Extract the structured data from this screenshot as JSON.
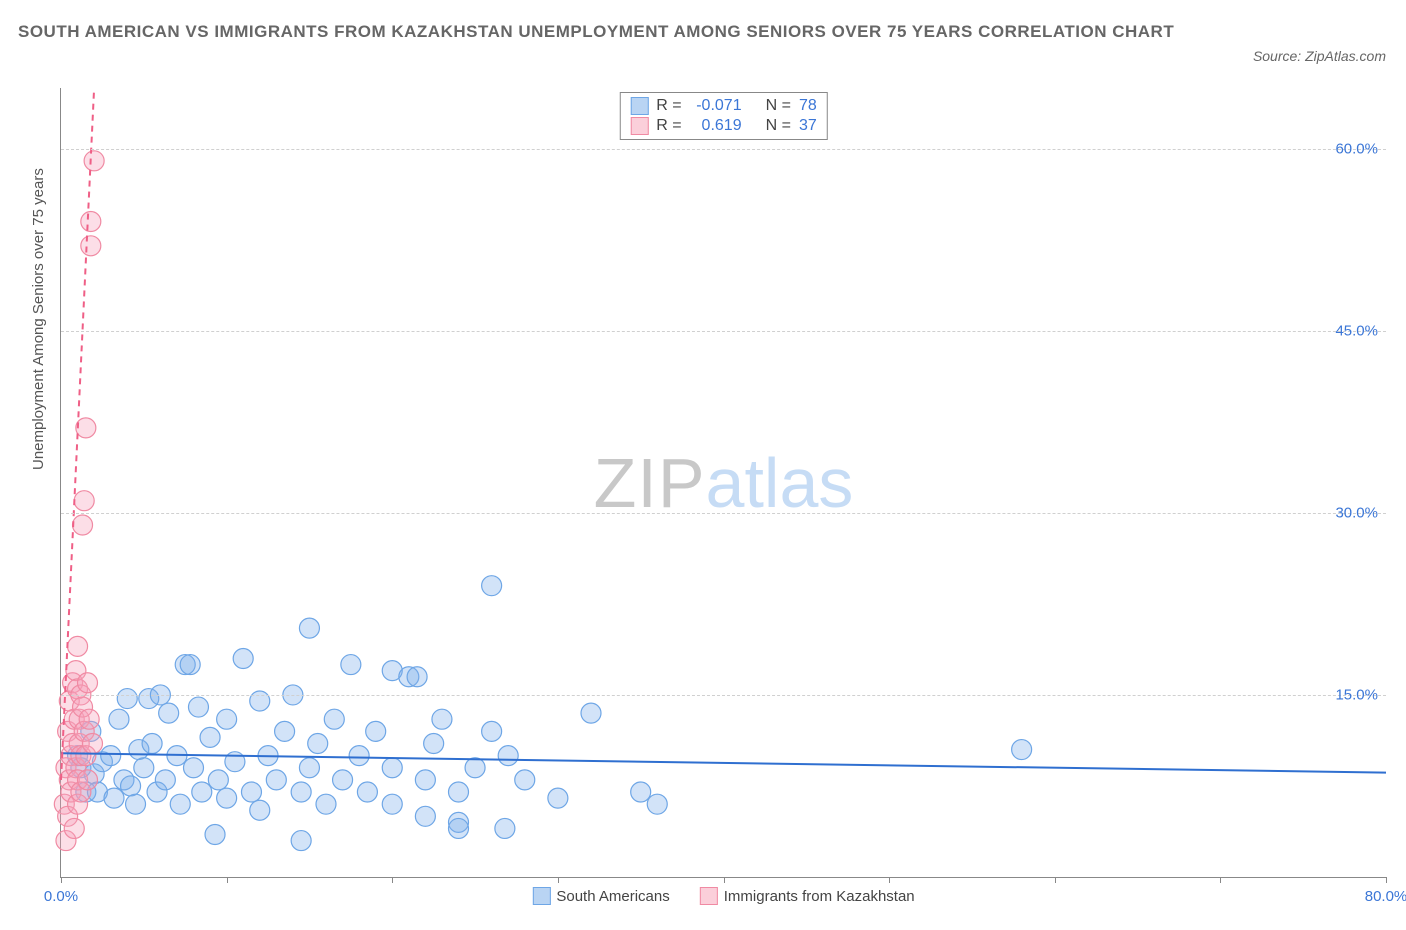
{
  "title": "SOUTH AMERICAN VS IMMIGRANTS FROM KAZAKHSTAN UNEMPLOYMENT AMONG SENIORS OVER 75 YEARS CORRELATION CHART",
  "source_label": "Source: ZipAtlas.com",
  "y_axis_label": "Unemployment Among Seniors over 75 years",
  "watermark_a": "ZIP",
  "watermark_b": "atlas",
  "chart": {
    "type": "scatter",
    "background_color": "#ffffff",
    "grid_color": "#d0d0d0",
    "axis_color": "#888888",
    "xlim": [
      0,
      80
    ],
    "ylim": [
      0,
      65
    ],
    "x_ticks": [
      0,
      10,
      20,
      30,
      40,
      50,
      60,
      70,
      80
    ],
    "x_tick_labels": {
      "0": "0.0%",
      "80": "80.0%"
    },
    "x_tick_label_color": "#3b76d6",
    "y_ticks": [
      15,
      30,
      45,
      60
    ],
    "y_tick_labels": {
      "15": "15.0%",
      "30": "30.0%",
      "45": "45.0%",
      "60": "60.0%"
    },
    "y_tick_label_color": "#3b76d6",
    "marker_radius": 10,
    "marker_stroke_width": 1.2,
    "trendline_width": 2,
    "legend_top": [
      {
        "swatch_fill": "#b9d4f3",
        "swatch_stroke": "#6ea6e6",
        "r_label": "R =",
        "r_value": "-0.071",
        "n_label": "N =",
        "n_value": "78"
      },
      {
        "swatch_fill": "#fbcfda",
        "swatch_stroke": "#f08aa3",
        "r_label": "R =",
        "r_value": "0.619",
        "n_label": "N =",
        "n_value": "37"
      }
    ],
    "legend_bottom": [
      {
        "swatch_fill": "#b9d4f3",
        "swatch_stroke": "#6ea6e6",
        "label": "South Americans"
      },
      {
        "swatch_fill": "#fbcfda",
        "swatch_stroke": "#f08aa3",
        "label": "Immigrants from Kazakhstan"
      }
    ],
    "series": [
      {
        "name": "South Americans",
        "fill": "rgba(125,175,235,0.35)",
        "stroke": "#6ea6e6",
        "trend_color": "#2f6fd0",
        "trend_dash": "none",
        "trend_p1": [
          0,
          10.2
        ],
        "trend_p2": [
          80,
          8.6
        ],
        "points": [
          [
            1.0,
            10.0
          ],
          [
            1.2,
            9.0
          ],
          [
            1.5,
            7.0
          ],
          [
            1.8,
            12.0
          ],
          [
            2.0,
            8.5
          ],
          [
            2.2,
            7.0
          ],
          [
            2.5,
            9.5
          ],
          [
            3.0,
            10.0
          ],
          [
            3.2,
            6.5
          ],
          [
            3.5,
            13.0
          ],
          [
            3.8,
            8.0
          ],
          [
            4.0,
            14.7
          ],
          [
            4.2,
            7.5
          ],
          [
            4.5,
            6.0
          ],
          [
            4.7,
            10.5
          ],
          [
            5.0,
            9.0
          ],
          [
            5.3,
            14.7
          ],
          [
            5.5,
            11.0
          ],
          [
            5.8,
            7.0
          ],
          [
            6.0,
            15.0
          ],
          [
            6.3,
            8.0
          ],
          [
            6.5,
            13.5
          ],
          [
            7.0,
            10.0
          ],
          [
            7.2,
            6.0
          ],
          [
            7.5,
            17.5
          ],
          [
            7.8,
            17.5
          ],
          [
            8.0,
            9.0
          ],
          [
            8.3,
            14.0
          ],
          [
            8.5,
            7.0
          ],
          [
            9.0,
            11.5
          ],
          [
            9.3,
            3.5
          ],
          [
            9.5,
            8.0
          ],
          [
            10.0,
            13.0
          ],
          [
            10.0,
            6.5
          ],
          [
            10.5,
            9.5
          ],
          [
            11.0,
            18.0
          ],
          [
            11.5,
            7.0
          ],
          [
            12.0,
            14.5
          ],
          [
            12.0,
            5.5
          ],
          [
            12.5,
            10.0
          ],
          [
            13.0,
            8.0
          ],
          [
            13.5,
            12.0
          ],
          [
            14.0,
            15.0
          ],
          [
            14.5,
            7.0
          ],
          [
            14.5,
            3.0
          ],
          [
            15.0,
            9.0
          ],
          [
            15.0,
            20.5
          ],
          [
            15.5,
            11.0
          ],
          [
            16.0,
            6.0
          ],
          [
            16.5,
            13.0
          ],
          [
            17.0,
            8.0
          ],
          [
            17.5,
            17.5
          ],
          [
            18.0,
            10.0
          ],
          [
            18.5,
            7.0
          ],
          [
            19.0,
            12.0
          ],
          [
            20.0,
            6.0
          ],
          [
            20.0,
            9.0
          ],
          [
            20.0,
            17.0
          ],
          [
            21.0,
            16.5
          ],
          [
            21.5,
            16.5
          ],
          [
            22.0,
            8.0
          ],
          [
            22.0,
            5.0
          ],
          [
            22.5,
            11.0
          ],
          [
            23.0,
            13.0
          ],
          [
            24.0,
            7.0
          ],
          [
            24.0,
            4.5
          ],
          [
            24.0,
            4.0
          ],
          [
            25.0,
            9.0
          ],
          [
            26.0,
            24.0
          ],
          [
            26.8,
            4.0
          ],
          [
            26.0,
            12.0
          ],
          [
            27.0,
            10.0
          ],
          [
            28.0,
            8.0
          ],
          [
            30.0,
            6.5
          ],
          [
            32.0,
            13.5
          ],
          [
            35.0,
            7.0
          ],
          [
            58.0,
            10.5
          ],
          [
            36.0,
            6.0
          ]
        ]
      },
      {
        "name": "Immigrants from Kazakhstan",
        "fill": "rgba(246,160,185,0.35)",
        "stroke": "#f08aa3",
        "trend_color": "#ef5f86",
        "trend_dash": "6,5",
        "trend_p1": [
          0,
          8.0
        ],
        "trend_p2": [
          2.0,
          65.0
        ],
        "points": [
          [
            0.2,
            6.0
          ],
          [
            0.3,
            3.0
          ],
          [
            0.3,
            9.0
          ],
          [
            0.4,
            12.0
          ],
          [
            0.4,
            5.0
          ],
          [
            0.5,
            14.5
          ],
          [
            0.5,
            8.0
          ],
          [
            0.6,
            10.0
          ],
          [
            0.6,
            7.0
          ],
          [
            0.7,
            16.0
          ],
          [
            0.7,
            11.0
          ],
          [
            0.8,
            13.0
          ],
          [
            0.8,
            4.0
          ],
          [
            0.9,
            17.0
          ],
          [
            0.9,
            9.0
          ],
          [
            1.0,
            15.5
          ],
          [
            1.0,
            6.0
          ],
          [
            1.0,
            19.0
          ],
          [
            1.0,
            8.0
          ],
          [
            1.1,
            11.0
          ],
          [
            1.1,
            13.0
          ],
          [
            1.2,
            10.0
          ],
          [
            1.2,
            15.0
          ],
          [
            1.2,
            7.0
          ],
          [
            1.3,
            14.0
          ],
          [
            1.3,
            29.0
          ],
          [
            1.4,
            12.0
          ],
          [
            1.4,
            31.0
          ],
          [
            1.5,
            10.0
          ],
          [
            1.5,
            37.0
          ],
          [
            1.6,
            16.0
          ],
          [
            1.6,
            8.0
          ],
          [
            1.7,
            13.0
          ],
          [
            1.8,
            54.0
          ],
          [
            1.8,
            52.0
          ],
          [
            1.9,
            11.0
          ],
          [
            2.0,
            59.0
          ]
        ]
      }
    ]
  }
}
